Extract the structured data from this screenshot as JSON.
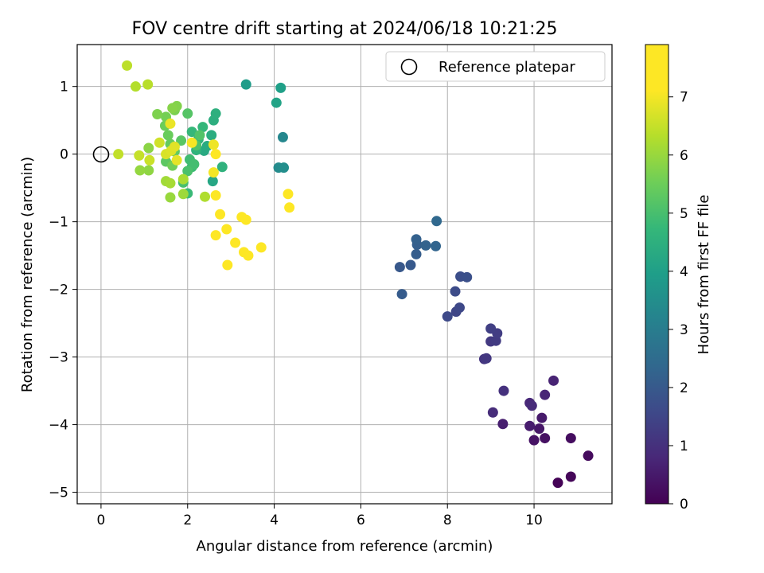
{
  "chart_data": {
    "type": "scatter",
    "title": "FOV centre drift starting at 2024/06/18 10:21:25",
    "xlabel": "Angular distance from reference (arcmin)",
    "ylabel": "Rotation from reference (arcmin)",
    "xlim": [
      -0.55,
      11.8
    ],
    "ylim": [
      -5.17,
      1.62
    ],
    "xticks": [
      0,
      2,
      4,
      6,
      8,
      10
    ],
    "xtick_labels": [
      "0",
      "2",
      "4",
      "6",
      "8",
      "10"
    ],
    "yticks": [
      -5,
      -4,
      -3,
      -2,
      -1,
      0,
      1
    ],
    "ytick_labels": [
      "−5",
      "−4",
      "−3",
      "−2",
      "−1",
      "0",
      "1"
    ],
    "grid": true,
    "legend": {
      "placement": "top-right",
      "entries": [
        {
          "label": "Reference platepar",
          "marker": "open-circle"
        }
      ]
    },
    "reference_point": {
      "x": 0,
      "y": 0
    },
    "colorbar": {
      "label": "Hours from first FF file",
      "colormap": "viridis",
      "range": [
        0,
        7.9
      ],
      "ticks": [
        0,
        1,
        2,
        3,
        4,
        5,
        6,
        7
      ]
    },
    "points": [
      {
        "x": 10.55,
        "y": -4.86,
        "t": 0.05
      },
      {
        "x": 10.85,
        "y": -4.77,
        "t": 0.12
      },
      {
        "x": 11.25,
        "y": -4.46,
        "t": 0.2
      },
      {
        "x": 10.85,
        "y": -4.2,
        "t": 0.25
      },
      {
        "x": 10.25,
        "y": -4.2,
        "t": 0.3
      },
      {
        "x": 10.0,
        "y": -4.23,
        "t": 0.35
      },
      {
        "x": 10.12,
        "y": -4.06,
        "t": 0.42
      },
      {
        "x": 10.18,
        "y": -3.9,
        "t": 0.5
      },
      {
        "x": 9.9,
        "y": -4.02,
        "t": 0.55
      },
      {
        "x": 9.28,
        "y": -3.99,
        "t": 0.6
      },
      {
        "x": 10.45,
        "y": -3.35,
        "t": 0.7
      },
      {
        "x": 10.25,
        "y": -3.56,
        "t": 0.75
      },
      {
        "x": 9.9,
        "y": -3.68,
        "t": 0.8
      },
      {
        "x": 9.95,
        "y": -3.72,
        "t": 0.85
      },
      {
        "x": 9.05,
        "y": -3.82,
        "t": 0.9
      },
      {
        "x": 9.3,
        "y": -3.5,
        "t": 1.0
      },
      {
        "x": 8.85,
        "y": -3.03,
        "t": 1.1
      },
      {
        "x": 8.9,
        "y": -3.02,
        "t": 1.15
      },
      {
        "x": 9.0,
        "y": -2.77,
        "t": 1.2
      },
      {
        "x": 9.12,
        "y": -2.76,
        "t": 1.25
      },
      {
        "x": 9.15,
        "y": -2.65,
        "t": 1.3
      },
      {
        "x": 9.0,
        "y": -2.58,
        "t": 1.35
      },
      {
        "x": 8.2,
        "y": -2.33,
        "t": 1.5
      },
      {
        "x": 8.28,
        "y": -2.27,
        "t": 1.55
      },
      {
        "x": 8.0,
        "y": -2.4,
        "t": 1.6
      },
      {
        "x": 8.18,
        "y": -2.03,
        "t": 1.65
      },
      {
        "x": 8.3,
        "y": -1.81,
        "t": 1.7
      },
      {
        "x": 8.45,
        "y": -1.82,
        "t": 1.75
      },
      {
        "x": 6.9,
        "y": -1.67,
        "t": 1.95
      },
      {
        "x": 7.15,
        "y": -1.64,
        "t": 2.0
      },
      {
        "x": 6.95,
        "y": -2.07,
        "t": 2.05
      },
      {
        "x": 7.28,
        "y": -1.48,
        "t": 2.1
      },
      {
        "x": 7.3,
        "y": -1.34,
        "t": 2.15
      },
      {
        "x": 7.28,
        "y": -1.26,
        "t": 2.2
      },
      {
        "x": 7.5,
        "y": -1.35,
        "t": 2.25
      },
      {
        "x": 7.73,
        "y": -1.36,
        "t": 2.3
      },
      {
        "x": 7.75,
        "y": -0.99,
        "t": 2.4
      },
      {
        "x": 4.2,
        "y": 0.25,
        "t": 3.3
      },
      {
        "x": 4.1,
        "y": -0.2,
        "t": 3.4
      },
      {
        "x": 4.22,
        "y": -0.2,
        "t": 3.5
      },
      {
        "x": 3.35,
        "y": 1.03,
        "t": 3.9
      },
      {
        "x": 4.15,
        "y": 0.98,
        "t": 4.0
      },
      {
        "x": 4.05,
        "y": 0.76,
        "t": 4.1
      },
      {
        "x": 2.58,
        "y": -0.4,
        "t": 4.2
      },
      {
        "x": 2.38,
        "y": 0.05,
        "t": 4.3
      },
      {
        "x": 2.45,
        "y": 0.12,
        "t": 4.35
      },
      {
        "x": 2.55,
        "y": 0.28,
        "t": 4.4
      },
      {
        "x": 2.6,
        "y": 0.5,
        "t": 4.45
      },
      {
        "x": 2.65,
        "y": 0.6,
        "t": 4.5
      },
      {
        "x": 2.8,
        "y": -0.19,
        "t": 4.55
      },
      {
        "x": 2.2,
        "y": 0.06,
        "t": 4.6
      },
      {
        "x": 2.25,
        "y": 0.22,
        "t": 4.65
      },
      {
        "x": 2.35,
        "y": 0.4,
        "t": 4.7
      },
      {
        "x": 2.1,
        "y": 0.33,
        "t": 4.75
      },
      {
        "x": 2.0,
        "y": -0.58,
        "t": 4.8
      },
      {
        "x": 2.1,
        "y": -0.19,
        "t": 4.85
      },
      {
        "x": 2.05,
        "y": -0.08,
        "t": 4.9
      },
      {
        "x": 2.15,
        "y": -0.15,
        "t": 4.95
      },
      {
        "x": 1.9,
        "y": -0.42,
        "t": 5.0
      },
      {
        "x": 2.0,
        "y": -0.25,
        "t": 5.05
      },
      {
        "x": 2.2,
        "y": 0.13,
        "t": 5.1
      },
      {
        "x": 2.28,
        "y": 0.28,
        "t": 5.15
      },
      {
        "x": 2.0,
        "y": 0.6,
        "t": 5.2
      },
      {
        "x": 1.85,
        "y": 0.2,
        "t": 5.25
      },
      {
        "x": 1.5,
        "y": -0.11,
        "t": 5.3
      },
      {
        "x": 1.7,
        "y": 0.04,
        "t": 5.35
      },
      {
        "x": 1.6,
        "y": 0.15,
        "t": 5.4
      },
      {
        "x": 1.55,
        "y": 0.28,
        "t": 5.45
      },
      {
        "x": 1.48,
        "y": 0.42,
        "t": 5.5
      },
      {
        "x": 1.65,
        "y": -0.17,
        "t": 5.55
      },
      {
        "x": 1.5,
        "y": 0.55,
        "t": 5.6
      },
      {
        "x": 1.7,
        "y": 0.65,
        "t": 5.65
      },
      {
        "x": 1.3,
        "y": 0.59,
        "t": 5.7
      },
      {
        "x": 1.75,
        "y": 0.71,
        "t": 5.75
      },
      {
        "x": 1.65,
        "y": 0.68,
        "t": 5.8
      },
      {
        "x": 1.1,
        "y": 0.09,
        "t": 5.85
      },
      {
        "x": 1.1,
        "y": -0.24,
        "t": 5.9
      },
      {
        "x": 0.9,
        "y": -0.24,
        "t": 5.95
      },
      {
        "x": 1.6,
        "y": -0.64,
        "t": 6.0
      },
      {
        "x": 1.9,
        "y": -0.59,
        "t": 6.05
      },
      {
        "x": 1.5,
        "y": -0.4,
        "t": 6.1
      },
      {
        "x": 1.6,
        "y": -0.43,
        "t": 6.15
      },
      {
        "x": 1.9,
        "y": -0.37,
        "t": 6.2
      },
      {
        "x": 2.4,
        "y": -0.63,
        "t": 6.25
      },
      {
        "x": 0.8,
        "y": 1.0,
        "t": 6.3
      },
      {
        "x": 1.08,
        "y": 1.03,
        "t": 6.35
      },
      {
        "x": 0.6,
        "y": 1.31,
        "t": 6.4
      },
      {
        "x": 0.4,
        "y": 0.0,
        "t": 6.45
      },
      {
        "x": 0.88,
        "y": -0.02,
        "t": 6.5
      },
      {
        "x": 1.12,
        "y": -0.09,
        "t": 6.55
      },
      {
        "x": 1.35,
        "y": 0.17,
        "t": 6.6
      },
      {
        "x": 1.5,
        "y": 0.0,
        "t": 6.7
      },
      {
        "x": 1.62,
        "y": 0.05,
        "t": 6.75
      },
      {
        "x": 1.7,
        "y": 0.11,
        "t": 6.8
      },
      {
        "x": 1.75,
        "y": -0.09,
        "t": 6.85
      },
      {
        "x": 1.6,
        "y": 0.45,
        "t": 6.9
      },
      {
        "x": 2.6,
        "y": 0.14,
        "t": 6.95
      },
      {
        "x": 2.6,
        "y": -0.27,
        "t": 7.0
      },
      {
        "x": 2.1,
        "y": 0.17,
        "t": 7.05
      },
      {
        "x": 2.65,
        "y": -0.61,
        "t": 7.1
      },
      {
        "x": 2.65,
        "y": 0.0,
        "t": 7.2
      },
      {
        "x": 2.75,
        "y": -0.89,
        "t": 7.25
      },
      {
        "x": 2.65,
        "y": -1.2,
        "t": 7.3
      },
      {
        "x": 2.9,
        "y": -1.11,
        "t": 7.35
      },
      {
        "x": 3.25,
        "y": -0.93,
        "t": 7.4
      },
      {
        "x": 3.35,
        "y": -0.97,
        "t": 7.45
      },
      {
        "x": 3.1,
        "y": -1.31,
        "t": 7.5
      },
      {
        "x": 3.3,
        "y": -1.45,
        "t": 7.55
      },
      {
        "x": 3.4,
        "y": -1.5,
        "t": 7.6
      },
      {
        "x": 2.92,
        "y": -1.64,
        "t": 7.65
      },
      {
        "x": 3.7,
        "y": -1.38,
        "t": 7.7
      },
      {
        "x": 4.32,
        "y": -0.59,
        "t": 7.75
      },
      {
        "x": 4.35,
        "y": -0.79,
        "t": 7.8
      }
    ]
  }
}
